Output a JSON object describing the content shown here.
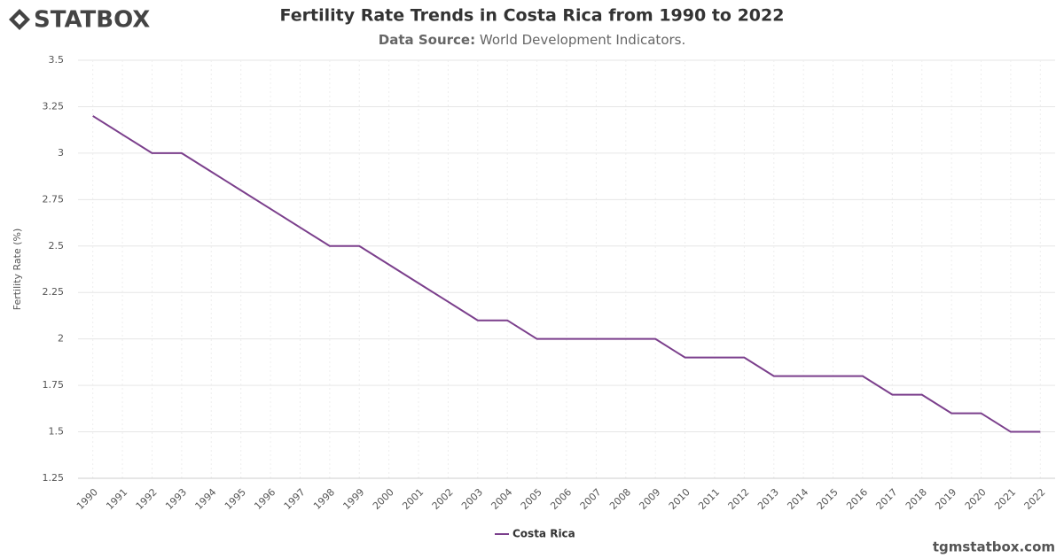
{
  "brand": "STATBOX",
  "watermark": "tgmstatbox.com",
  "chart_data": {
    "type": "line",
    "title": "Fertility Rate Trends in Costa Rica from 1990 to 2022",
    "subtitle_label": "Data Source:",
    "subtitle_text": "World Development Indicators.",
    "y_label": "Fertility Rate (%)",
    "categories": [
      "1990",
      "1991",
      "1992",
      "1993",
      "1994",
      "1995",
      "1996",
      "1997",
      "1998",
      "1999",
      "2000",
      "2001",
      "2002",
      "2003",
      "2004",
      "2005",
      "2006",
      "2007",
      "2008",
      "2009",
      "2010",
      "2011",
      "2012",
      "2013",
      "2014",
      "2015",
      "2016",
      "2017",
      "2018",
      "2019",
      "2020",
      "2021",
      "2022"
    ],
    "series": [
      {
        "name": "Costa Rica",
        "color": "#7b3f8c",
        "values": [
          3.2,
          3.1,
          3.0,
          3.0,
          2.9,
          2.8,
          2.7,
          2.6,
          2.5,
          2.5,
          2.4,
          2.3,
          2.2,
          2.1,
          2.1,
          2.0,
          2.0,
          2.0,
          2.0,
          2.0,
          1.9,
          1.9,
          1.9,
          1.8,
          1.8,
          1.8,
          1.8,
          1.7,
          1.7,
          1.6,
          1.6,
          1.5,
          1.5
        ]
      }
    ],
    "ylim": [
      1.25,
      3.5
    ],
    "yticks": [
      1.25,
      1.5,
      1.75,
      2,
      2.25,
      2.5,
      2.75,
      3,
      3.25,
      3.5
    ],
    "grid": true,
    "legend": "bottom"
  }
}
